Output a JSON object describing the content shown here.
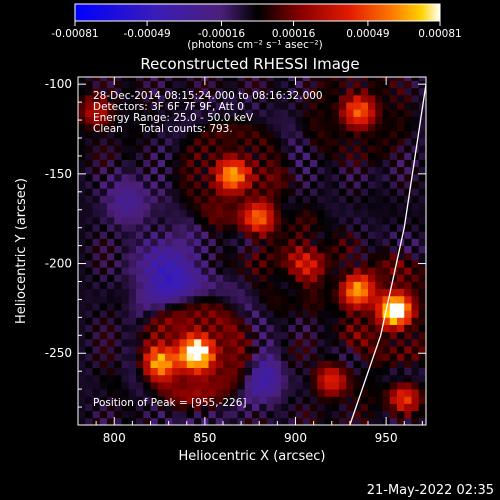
{
  "chart_data": {
    "type": "heatmap",
    "title": "Reconstructed RHESSI Image",
    "xlabel": "Heliocentric X (arcsec)",
    "ylabel": "Heliocentric Y (arcsec)",
    "xlim": [
      780,
      972
    ],
    "ylim": [
      -290,
      -96
    ],
    "x_ticks": [
      800,
      850,
      900,
      950
    ],
    "x_tick_labels": [
      "800",
      "850",
      "900",
      "950"
    ],
    "y_ticks": [
      -100,
      -150,
      -200,
      -250
    ],
    "y_tick_labels": [
      "-100",
      "-150",
      "-200",
      "-250"
    ],
    "colorbar": {
      "range": [
        -0.00081,
        0.00081
      ],
      "ticks": [
        -0.00081,
        -0.00049,
        -0.00016,
        0.00016,
        0.00049,
        0.00081
      ],
      "tick_labels": [
        "-0.00081",
        "-0.00049",
        "-0.00016",
        "0.00016",
        "0.00049",
        "0.00081"
      ],
      "unit_label": "(photons cm⁻² s⁻¹ asec⁻²)"
    },
    "annotations": [
      "28-Dec-2014 08:15:24.000 to 08:16:32.000",
      "Detectors: 3F 6F 7F 9F, Att 0",
      "Energy Range: 25.0 - 50.0 keV",
      "Clean     Total counts: 793."
    ],
    "peak_label": "Position of Peak = [955,-226]",
    "peak": [
      955,
      -226
    ],
    "limb_curve": [
      [
        930,
        -290
      ],
      [
        947,
        -240
      ],
      [
        960,
        -180
      ],
      [
        972,
        -100
      ]
    ],
    "sources": [
      {
        "x": 845,
        "y": -250,
        "sigma": 12,
        "amp": 1.0
      },
      {
        "x": 826,
        "y": -255,
        "sigma": 8,
        "amp": 0.55
      },
      {
        "x": 955,
        "y": -226,
        "sigma": 10,
        "amp": 0.95
      },
      {
        "x": 935,
        "y": -215,
        "sigma": 9,
        "amp": 0.6
      },
      {
        "x": 865,
        "y": -150,
        "sigma": 11,
        "amp": 0.7
      },
      {
        "x": 880,
        "y": -175,
        "sigma": 9,
        "amp": 0.55
      },
      {
        "x": 935,
        "y": -115,
        "sigma": 10,
        "amp": 0.6
      },
      {
        "x": 905,
        "y": -200,
        "sigma": 10,
        "amp": 0.45
      },
      {
        "x": 790,
        "y": -115,
        "sigma": 9,
        "amp": 0.35
      },
      {
        "x": 920,
        "y": -265,
        "sigma": 9,
        "amp": 0.45
      },
      {
        "x": 960,
        "y": -275,
        "sigma": 8,
        "amp": 0.5
      },
      {
        "x": 830,
        "y": -205,
        "sigma": 12,
        "amp": -0.55
      },
      {
        "x": 808,
        "y": -165,
        "sigma": 9,
        "amp": -0.3
      },
      {
        "x": 885,
        "y": -265,
        "sigma": 9,
        "amp": -0.35
      }
    ]
  },
  "footer": {
    "timestamp": "21-May-2022 02:35"
  }
}
